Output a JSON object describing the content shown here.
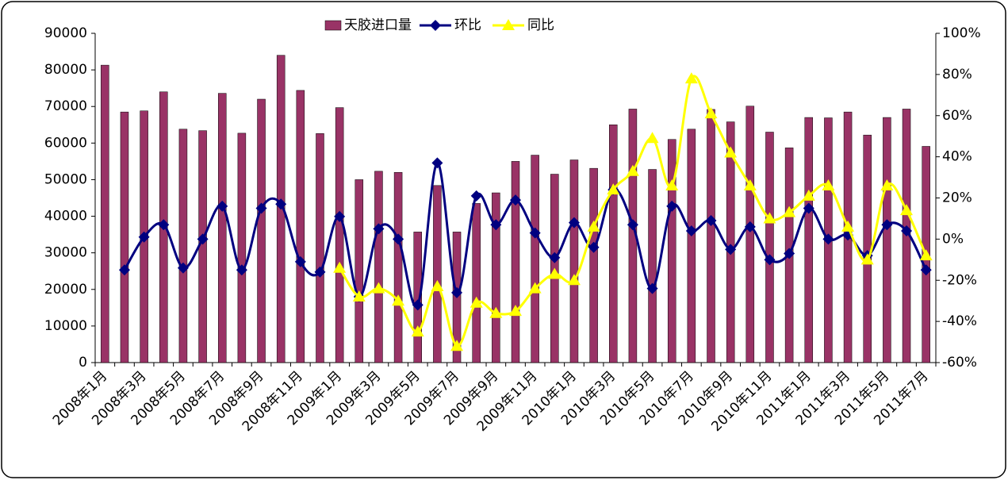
{
  "chart_data": {
    "type": "bar_line",
    "categories": [
      "2008年1月",
      null,
      "2008年3月",
      null,
      "2008年5月",
      null,
      "2008年7月",
      null,
      "2008年9月",
      null,
      "2008年11月",
      null,
      "2009年1月",
      null,
      "2009年3月",
      null,
      "2009年5月",
      null,
      "2009年7月",
      null,
      "2009年9月",
      null,
      "2009年11月",
      null,
      "2010年1月",
      null,
      "2010年3月",
      null,
      "2010年5月",
      null,
      "2010年7月",
      null,
      "2010年9月",
      null,
      "2010年11月",
      null,
      "2011年1月",
      null,
      "2011年3月",
      null,
      "2011年5月",
      null,
      "2011年7月"
    ],
    "series": [
      {
        "name": "天胶进口量",
        "color": "#993366",
        "kind": "bar",
        "values": [
          81300,
          68500,
          68800,
          74000,
          63800,
          63400,
          73600,
          62700,
          72000,
          84000,
          74400,
          62600,
          69700,
          50000,
          52300,
          52000,
          35700,
          48400,
          35700,
          43500,
          46400,
          55000,
          56700,
          51500,
          55400,
          53100,
          65000,
          69300,
          52800,
          61000,
          63800,
          69200,
          65800,
          70100,
          63000,
          58700,
          67000,
          66900,
          68500,
          62200,
          67000,
          69300,
          59100
        ]
      },
      {
        "name": "环比",
        "color": "#000080",
        "kind": "line",
        "marker": "diamond",
        "axis": "y2",
        "values": [
          null,
          -15,
          1,
          7,
          -14,
          0,
          16,
          -15,
          15,
          17,
          -11,
          -16,
          11,
          -28,
          5,
          0,
          -32,
          37,
          -26,
          21,
          7,
          19,
          3,
          -9,
          8,
          -4,
          24,
          7,
          -24,
          16,
          4,
          9,
          -5,
          6,
          -10,
          -7,
          15,
          0,
          2,
          -8,
          7,
          4,
          -15
        ]
      },
      {
        "name": "同比",
        "color": "#ffff00",
        "kind": "line",
        "marker": "triangle",
        "axis": "y2",
        "values": [
          null,
          null,
          null,
          null,
          null,
          null,
          null,
          null,
          null,
          null,
          null,
          null,
          -14,
          -28,
          -24,
          -30,
          -45,
          -23,
          -52,
          -31,
          -36,
          -35,
          -24,
          -17,
          -20,
          6,
          24,
          33,
          49,
          26,
          78,
          61,
          42,
          26,
          10,
          13,
          21,
          26,
          6,
          -10,
          26,
          14,
          -8
        ]
      }
    ],
    "ylim": [
      0,
      90000
    ],
    "yticks": [
      0,
      10000,
      20000,
      30000,
      40000,
      50000,
      60000,
      70000,
      80000,
      90000
    ],
    "y2lim": [
      -60,
      100
    ],
    "y2ticks": [
      {
        "value": -60,
        "label": "-60%"
      },
      {
        "value": -40,
        "label": "-40%"
      },
      {
        "value": -20,
        "label": "-20%"
      },
      {
        "value": 0,
        "label": "0%"
      },
      {
        "value": 20,
        "label": "20%"
      },
      {
        "value": 40,
        "label": "40%"
      },
      {
        "value": 60,
        "label": "60%"
      },
      {
        "value": 80,
        "label": "80%"
      },
      {
        "value": 100,
        "label": "100%"
      }
    ],
    "legend": "top"
  }
}
